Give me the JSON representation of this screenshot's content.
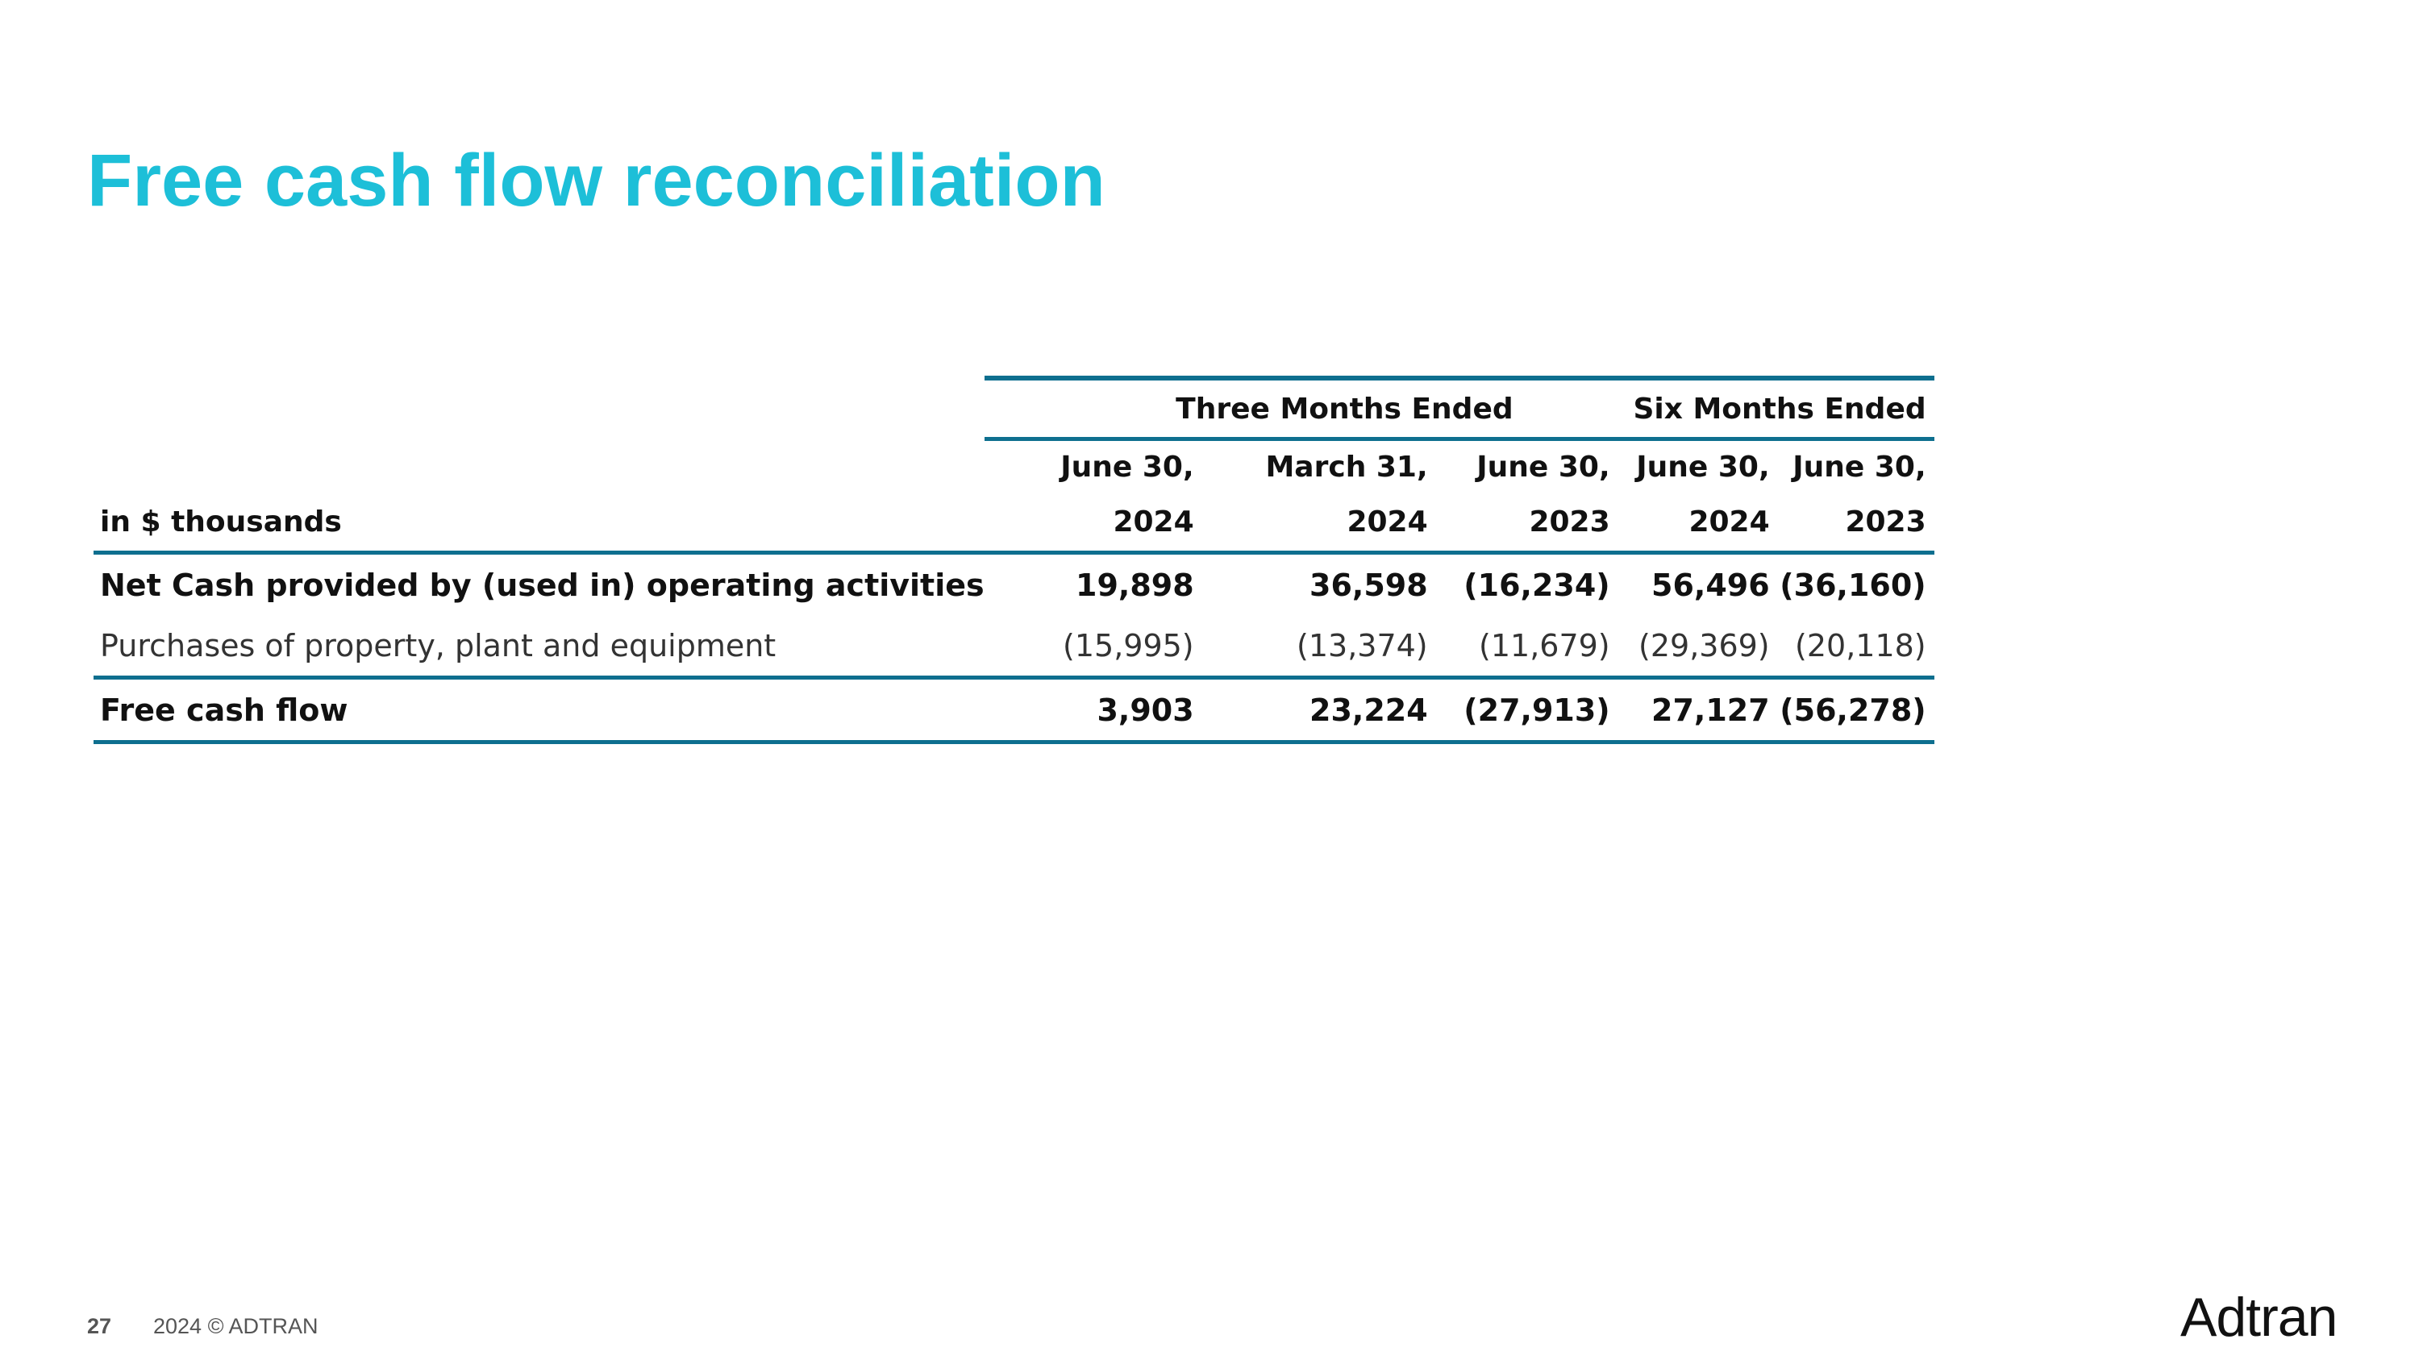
{
  "slide": {
    "title": "Free cash flow reconciliation",
    "page_number": "27",
    "copyright": "2024 © ADTRAN",
    "logo_text": "Adtran",
    "title_color": "#1dbfd8",
    "rule_color": "#0e6f8f"
  },
  "table": {
    "unit_label": "in $ thousands",
    "group_headers": [
      "Three Months Ended",
      "Six Months Ended"
    ],
    "columns": [
      {
        "date": "June 30,",
        "year": "2024"
      },
      {
        "date": "March 31,",
        "year": "2024"
      },
      {
        "date": "June 30,",
        "year": "2023"
      },
      {
        "date": "June 30,",
        "year": "2024"
      },
      {
        "date": "June 30,",
        "year": "2023"
      }
    ],
    "rows": [
      {
        "label": "Net Cash provided by (used in) operating activities",
        "values": [
          "19,898",
          "36,598",
          "(16,234)",
          "56,496",
          "(36,160)"
        ]
      },
      {
        "label": "Purchases of property, plant and equipment",
        "values": [
          "(15,995)",
          "(13,374)",
          "(11,679)",
          "(29,369)",
          "(20,118)"
        ]
      },
      {
        "label": "Free cash flow",
        "values": [
          "3,903",
          "23,224",
          "(27,913)",
          "27,127",
          "(56,278)"
        ]
      }
    ]
  }
}
